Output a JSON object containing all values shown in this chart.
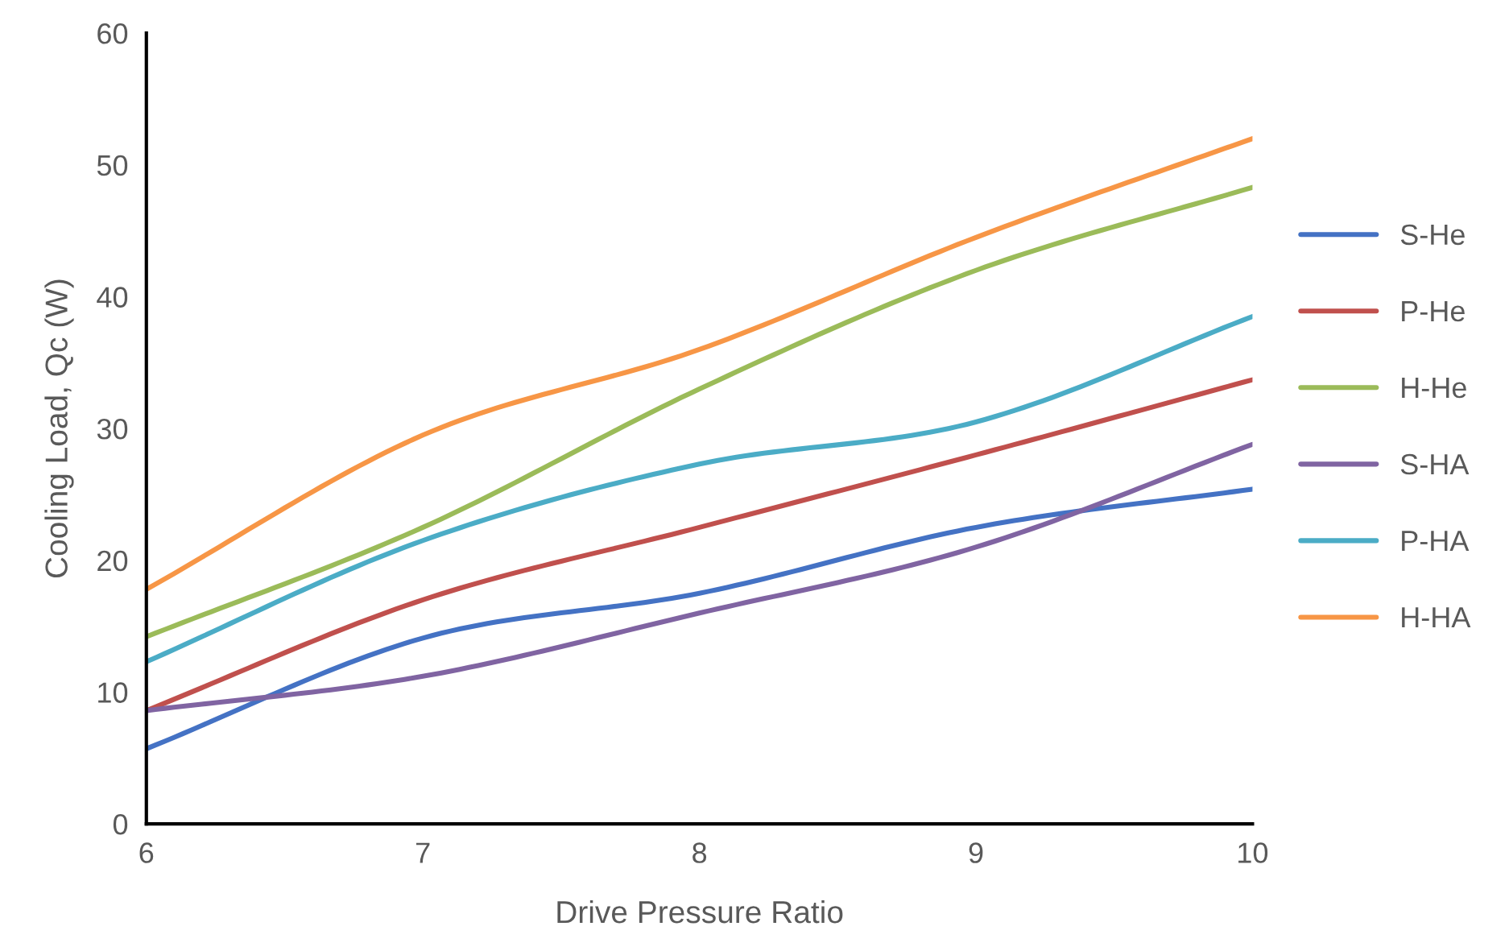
{
  "chart_data": {
    "type": "line",
    "xlabel": "Drive Pressure Ratio",
    "ylabel": "Cooling Load, Qc (W)",
    "x": [
      6,
      7,
      8,
      9,
      10
    ],
    "series": [
      {
        "name": "S-He",
        "color": "#4472c4",
        "values": [
          5.7,
          14.1,
          17.5,
          22.5,
          25.4
        ]
      },
      {
        "name": "P-He",
        "color": "#c0504d",
        "values": [
          8.6,
          17,
          22.5,
          28,
          33.7
        ]
      },
      {
        "name": "H-He",
        "color": "#9bbb59",
        "values": [
          14.2,
          22.5,
          33,
          42,
          48.3
        ]
      },
      {
        "name": "S-HA",
        "color": "#8064a2",
        "values": [
          8.6,
          11.2,
          16,
          21,
          28.8
        ]
      },
      {
        "name": "P-HA",
        "color": "#4bacc6",
        "values": [
          12.3,
          21.5,
          27.3,
          30.5,
          38.5
        ]
      },
      {
        "name": "H-HA",
        "color": "#f79646",
        "values": [
          17.8,
          29.5,
          36,
          44.5,
          52
        ]
      }
    ],
    "xlim": [
      6,
      10
    ],
    "xticks": [
      6,
      7,
      8,
      9,
      10
    ],
    "ylim": [
      0,
      60
    ],
    "yticks": [
      0,
      10,
      20,
      30,
      40,
      50,
      60
    ],
    "grid": false,
    "legend": "right",
    "marker": "none",
    "line_style": "solid"
  }
}
